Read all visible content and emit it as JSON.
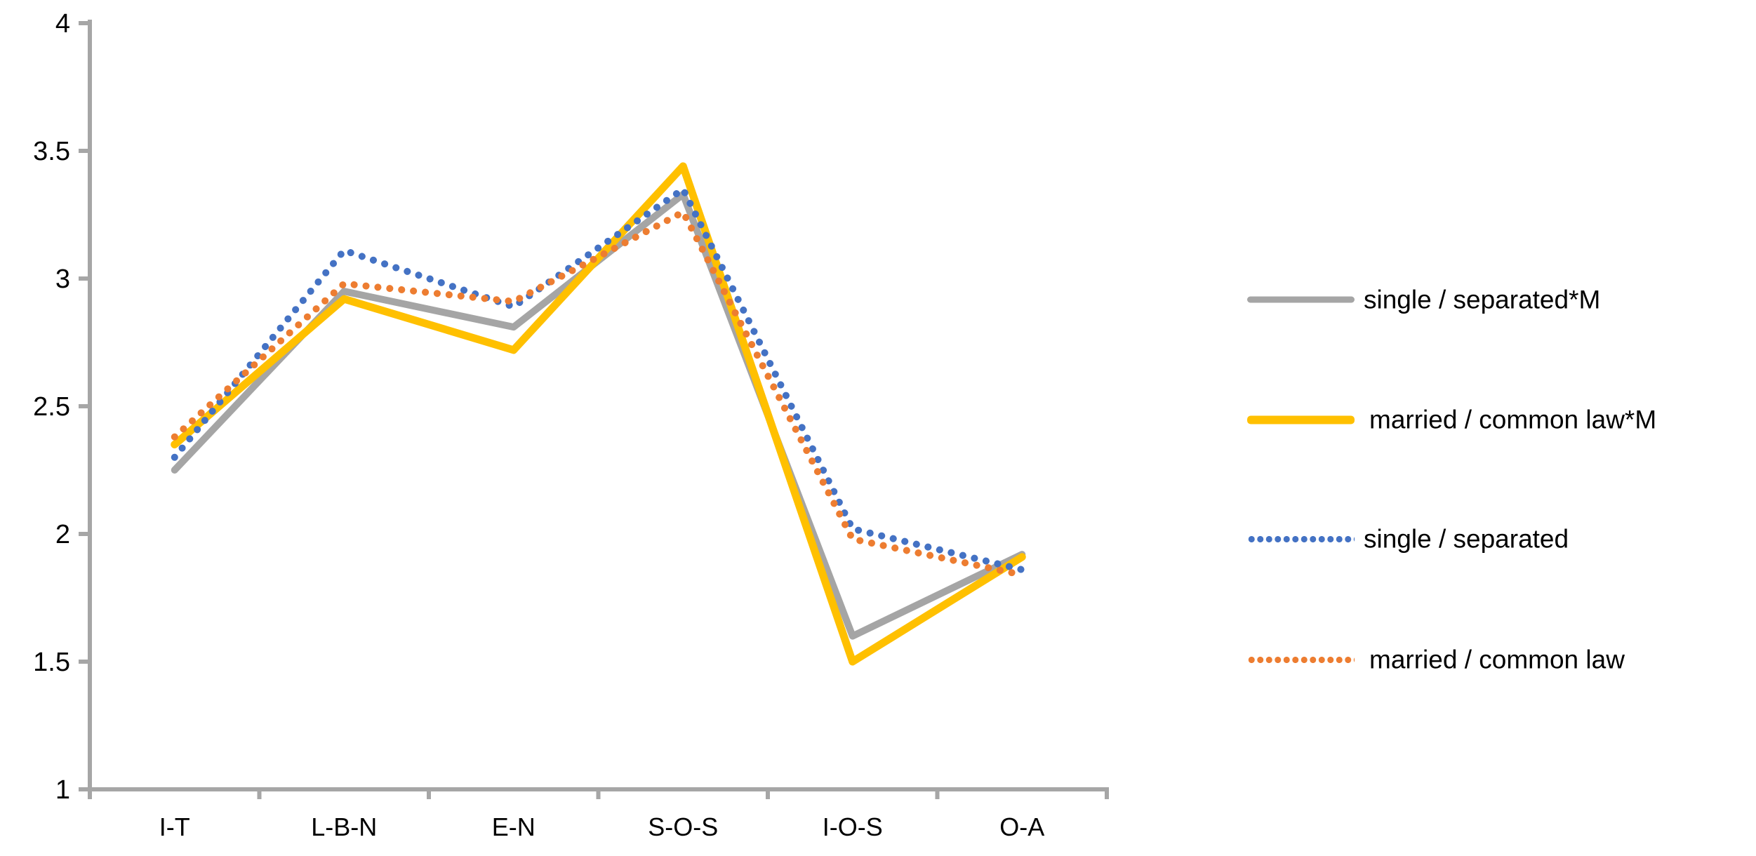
{
  "chart_data": {
    "type": "line",
    "title": "",
    "xlabel": "",
    "ylabel": "",
    "categories": [
      "I-T",
      "L-B-N",
      "E-N",
      "S-O-S",
      "I-O-S",
      "O-A"
    ],
    "series": [
      {
        "name": "single / separated*M",
        "color": "#A5A5A5",
        "line_style": "solid",
        "values": [
          2.25,
          2.95,
          2.81,
          3.33,
          1.6,
          1.92
        ]
      },
      {
        "name": "married / common law*M",
        "color": "#FFC000",
        "line_style": "solid",
        "values": [
          2.35,
          2.92,
          2.72,
          3.44,
          1.5,
          1.91
        ]
      },
      {
        "name": "single / separated",
        "color": "#4472C4",
        "line_style": "dotted",
        "values": [
          2.3,
          3.11,
          2.89,
          3.35,
          2.02,
          1.86
        ]
      },
      {
        "name": "married / common law",
        "color": "#ED7D31",
        "line_style": "dotted",
        "values": [
          2.38,
          2.98,
          2.91,
          3.26,
          1.98,
          1.84
        ]
      }
    ],
    "ylim": [
      1,
      4
    ],
    "y_ticks": [
      4,
      3.5,
      3,
      2.5,
      2,
      1.5,
      1
    ],
    "grid": false,
    "legend_position": "right",
    "axis_color": "#A6A6A6",
    "label_color": "#000000",
    "background_color": "#FFFFFF"
  }
}
